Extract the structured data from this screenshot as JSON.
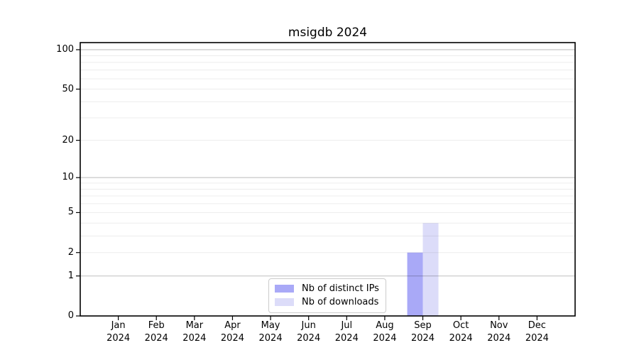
{
  "chart_data": {
    "type": "bar",
    "title": "msigdb 2024",
    "x": {
      "months": [
        "Jan",
        "Feb",
        "Mar",
        "Apr",
        "May",
        "Jun",
        "Jul",
        "Aug",
        "Sep",
        "Oct",
        "Nov",
        "Dec"
      ],
      "year": "2024"
    },
    "series": [
      {
        "name": "Nb of distinct IPs",
        "color": "#a9a9f7",
        "values": [
          0,
          0,
          0,
          0,
          0,
          0,
          0,
          0,
          2,
          0,
          0,
          0
        ]
      },
      {
        "name": "Nb of downloads",
        "color": "#dcdcf9",
        "values": [
          0,
          0,
          0,
          0,
          0,
          0,
          0,
          0,
          4,
          0,
          0,
          0
        ]
      }
    ],
    "yaxis": {
      "scale": "log1p",
      "ticks": [
        0,
        1,
        2,
        5,
        10,
        20,
        50,
        100
      ],
      "ylim": [
        0,
        100
      ],
      "major_gridlines": [
        1,
        10,
        100
      ],
      "minor_gridlines": [
        2,
        3,
        4,
        5,
        6,
        7,
        8,
        9,
        20,
        30,
        40,
        50,
        60,
        70,
        80,
        90
      ]
    },
    "legend_position": "bottom-center",
    "grid": "horizontal"
  },
  "colors": {
    "bar_distinct_ips": "#a9a9f7",
    "bar_downloads": "#dcdcf9",
    "major_grid": "rgba(0,0,0,0.22)",
    "minor_grid": "rgba(0,0,0,0.075)",
    "axis": "#000000"
  }
}
